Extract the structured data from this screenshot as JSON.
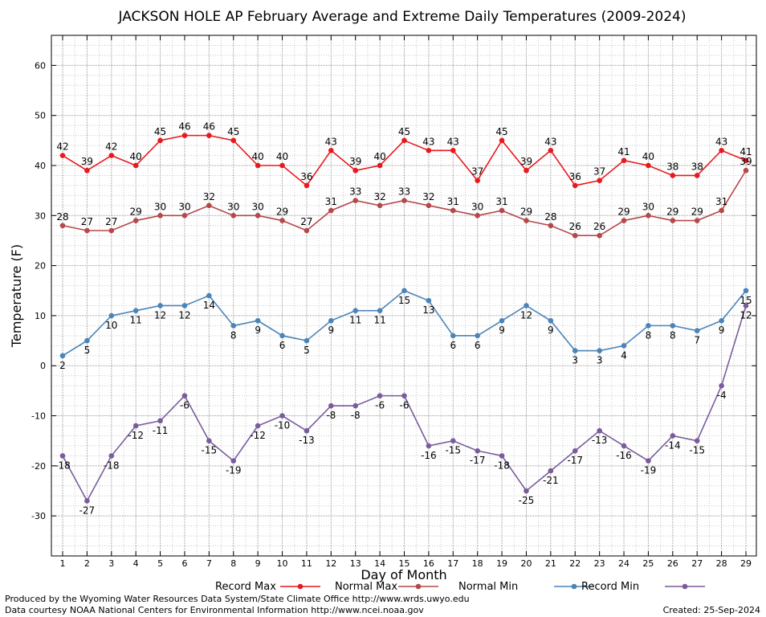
{
  "chart_data": {
    "type": "line",
    "title": "JACKSON HOLE AP February Average and Extreme Daily Temperatures (2009-2024)",
    "xlabel": "Day of Month",
    "ylabel": "Temperature (F)",
    "x": [
      1,
      2,
      3,
      4,
      5,
      6,
      7,
      8,
      9,
      10,
      11,
      12,
      13,
      14,
      15,
      16,
      17,
      18,
      19,
      20,
      21,
      22,
      23,
      24,
      25,
      26,
      27,
      28,
      29
    ],
    "ylim": [
      -38,
      66
    ],
    "yticks": [
      -30,
      -20,
      -10,
      0,
      10,
      20,
      30,
      40,
      50,
      60
    ],
    "grid": true,
    "legend_position": "bottom",
    "series": [
      {
        "name": "Record Max",
        "color": "#e8191e",
        "values": [
          42,
          39,
          42,
          40,
          45,
          46,
          46,
          45,
          40,
          40,
          36,
          43,
          39,
          40,
          45,
          43,
          43,
          37,
          45,
          39,
          43,
          36,
          37,
          41,
          40,
          38,
          38,
          43,
          41
        ]
      },
      {
        "name": "Normal Max",
        "color": "#b5484a",
        "values": [
          28,
          27,
          27,
          29,
          30,
          30,
          32,
          30,
          30,
          29,
          27,
          31,
          33,
          32,
          33,
          32,
          31,
          30,
          31,
          29,
          28,
          26,
          26,
          29,
          30,
          29,
          29,
          31,
          39
        ]
      },
      {
        "name": "Normal Min",
        "color": "#4b84b8",
        "values": [
          2,
          5,
          10,
          11,
          12,
          12,
          14,
          8,
          9,
          6,
          5,
          9,
          11,
          11,
          15,
          13,
          6,
          6,
          9,
          12,
          9,
          3,
          3,
          4,
          8,
          8,
          7,
          9,
          15
        ]
      },
      {
        "name": "Record Min",
        "color": "#7a5c9c",
        "values": [
          -18,
          -27,
          -18,
          -12,
          -11,
          -6,
          -15,
          -19,
          -12,
          -10,
          -13,
          -8,
          -8,
          -6,
          -6,
          -16,
          -15,
          -17,
          -18,
          -25,
          -21,
          -17,
          -13,
          -16,
          -19,
          -14,
          -15,
          -4,
          12
        ]
      }
    ]
  },
  "footer": {
    "produced_by": "Produced by the Wyoming Water Resources Data System/State Climate Office http://www.wrds.uwyo.edu",
    "courtesy": "Data courtesy NOAA National Centers for Environmental Information http://www.ncei.noaa.gov",
    "created": "Created: 25-Sep-2024"
  }
}
